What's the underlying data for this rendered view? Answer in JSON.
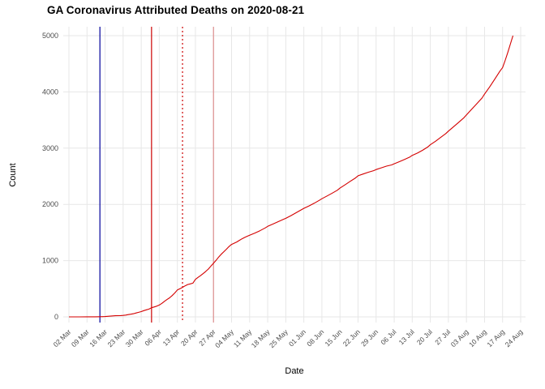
{
  "chart_data": {
    "type": "line",
    "title": "GA Coronavirus Attributed Deaths on 2020-08-21",
    "xlabel": "Date",
    "ylabel": "Count",
    "grid": true,
    "legend": "none",
    "grid_color": "#e7e7e7",
    "tick_label_color": "#4d4d4d",
    "ylim": [
      0,
      5000
    ],
    "y_ticks": [
      0,
      1000,
      2000,
      3000,
      4000,
      5000
    ],
    "x_range_days": [
      0,
      175
    ],
    "x_tick_days": [
      0,
      7,
      14,
      21,
      28,
      35,
      42,
      49,
      56,
      63,
      70,
      77,
      84,
      91,
      98,
      105,
      112,
      119,
      126,
      133,
      140,
      147,
      154,
      161,
      168,
      175
    ],
    "x_tick_labels": [
      "02 Mar",
      "09 Mar",
      "16 Mar",
      "23 Mar",
      "30 Mar",
      "06 Apr",
      "13 Apr",
      "20 Apr",
      "27 Apr",
      "04 May",
      "11 May",
      "18 May",
      "25 May",
      "01 Jun",
      "08 Jun",
      "15 Jun",
      "22 Jun",
      "29 Jun",
      "06 Jul",
      "13 Jul",
      "20 Jul",
      "27 Jul",
      "03 Aug",
      "10 Aug",
      "17 Aug",
      "24 Aug"
    ],
    "vlines": [
      {
        "name": "blue-solid",
        "day": 12,
        "color": "#00009b",
        "dash": "solid"
      },
      {
        "name": "red-solid",
        "day": 32,
        "color": "#cc0000",
        "dash": "solid"
      },
      {
        "name": "red-dotted",
        "day": 44,
        "color": "#cc0000",
        "dash": "dotted"
      },
      {
        "name": "pink-solid",
        "day": 56,
        "color": "#de8f8f",
        "dash": "solid"
      }
    ],
    "series": [
      {
        "name": "cumulative-deaths",
        "color": "#d40000",
        "points": [
          [
            0,
            0
          ],
          [
            4,
            0
          ],
          [
            7,
            1
          ],
          [
            10,
            1
          ],
          [
            12,
            3
          ],
          [
            14,
            6
          ],
          [
            16,
            13
          ],
          [
            18,
            20
          ],
          [
            20,
            23
          ],
          [
            21,
            26
          ],
          [
            22,
            32
          ],
          [
            23,
            40
          ],
          [
            24,
            48
          ],
          [
            25,
            56
          ],
          [
            26,
            69
          ],
          [
            27,
            80
          ],
          [
            28,
            94
          ],
          [
            29,
            111
          ],
          [
            30,
            125
          ],
          [
            31,
            139
          ],
          [
            32,
            163
          ],
          [
            33,
            176
          ],
          [
            34,
            190
          ],
          [
            35,
            211
          ],
          [
            36,
            240
          ],
          [
            37,
            276
          ],
          [
            38,
            308
          ],
          [
            39,
            338
          ],
          [
            40,
            379
          ],
          [
            41,
            425
          ],
          [
            42,
            478
          ],
          [
            43,
            501
          ],
          [
            44,
            524
          ],
          [
            45,
            552
          ],
          [
            46,
            575
          ],
          [
            47,
            587
          ],
          [
            48,
            600
          ],
          [
            49,
            667
          ],
          [
            50,
            702
          ],
          [
            51,
            733
          ],
          [
            52,
            769
          ],
          [
            53,
            808
          ],
          [
            54,
            850
          ],
          [
            55,
            903
          ],
          [
            56,
            952
          ],
          [
            57,
            1004
          ],
          [
            58,
            1063
          ],
          [
            59,
            1114
          ],
          [
            60,
            1159
          ],
          [
            61,
            1203
          ],
          [
            62,
            1250
          ],
          [
            63,
            1288
          ],
          [
            64,
            1310
          ],
          [
            65,
            1332
          ],
          [
            66,
            1360
          ],
          [
            67,
            1388
          ],
          [
            68,
            1410
          ],
          [
            69,
            1432
          ],
          [
            70,
            1452
          ],
          [
            72,
            1490
          ],
          [
            74,
            1532
          ],
          [
            76,
            1580
          ],
          [
            77,
            1610
          ],
          [
            79,
            1650
          ],
          [
            81,
            1692
          ],
          [
            83,
            1732
          ],
          [
            84,
            1752
          ],
          [
            86,
            1800
          ],
          [
            88,
            1852
          ],
          [
            90,
            1903
          ],
          [
            91,
            1930
          ],
          [
            93,
            1972
          ],
          [
            95,
            2020
          ],
          [
            97,
            2072
          ],
          [
            98,
            2101
          ],
          [
            100,
            2150
          ],
          [
            102,
            2200
          ],
          [
            104,
            2252
          ],
          [
            105,
            2290
          ],
          [
            107,
            2350
          ],
          [
            109,
            2410
          ],
          [
            111,
            2470
          ],
          [
            112,
            2508
          ],
          [
            114,
            2540
          ],
          [
            116,
            2572
          ],
          [
            118,
            2600
          ],
          [
            119,
            2620
          ],
          [
            121,
            2650
          ],
          [
            123,
            2680
          ],
          [
            125,
            2702
          ],
          [
            126,
            2722
          ],
          [
            128,
            2760
          ],
          [
            130,
            2800
          ],
          [
            132,
            2840
          ],
          [
            133,
            2872
          ],
          [
            135,
            2912
          ],
          [
            137,
            2962
          ],
          [
            139,
            3020
          ],
          [
            140,
            3060
          ],
          [
            142,
            3122
          ],
          [
            144,
            3190
          ],
          [
            146,
            3260
          ],
          [
            147,
            3302
          ],
          [
            149,
            3380
          ],
          [
            151,
            3460
          ],
          [
            153,
            3540
          ],
          [
            154,
            3592
          ],
          [
            156,
            3690
          ],
          [
            158,
            3790
          ],
          [
            160,
            3890
          ],
          [
            161,
            3960
          ],
          [
            163,
            4090
          ],
          [
            165,
            4230
          ],
          [
            167,
            4370
          ],
          [
            168,
            4432
          ],
          [
            169,
            4560
          ],
          [
            170,
            4700
          ],
          [
            171,
            4850
          ],
          [
            172,
            5000
          ]
        ]
      }
    ]
  }
}
